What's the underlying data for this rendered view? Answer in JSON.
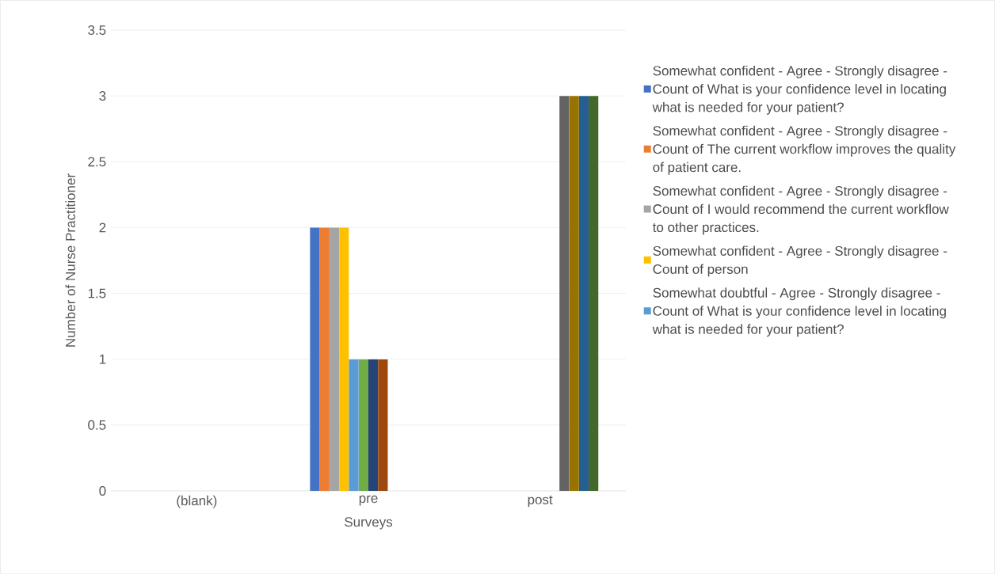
{
  "chart_data": {
    "type": "bar",
    "xlabel": "Surveys",
    "ylabel": "Number of Nurse Practitioner",
    "categories": [
      "(blank)",
      "pre",
      "post"
    ],
    "series": [
      {
        "name": "Somewhat confident - Agree - Strongly disagree - Count of What is your confidence level in locating what is needed for your patient?",
        "color": "#4472c4",
        "values": [
          null,
          2,
          null
        ]
      },
      {
        "name": "Somewhat confident - Agree - Strongly disagree - Count of The current workflow improves the quality of patient care.",
        "color": "#ed7d31",
        "values": [
          null,
          2,
          null
        ]
      },
      {
        "name": "Somewhat confident - Agree - Strongly disagree - Count of I would recommend the current workflow to other practices.",
        "color": "#a5a5a5",
        "values": [
          null,
          2,
          null
        ]
      },
      {
        "name": "Somewhat confident - Agree - Strongly disagree - Count of person",
        "color": "#ffc000",
        "values": [
          null,
          2,
          null
        ]
      },
      {
        "name": "Somewhat doubtful - Agree - Strongly disagree - Count of What is your confidence level in locating what is needed for your patient?",
        "color": "#5b9bd5",
        "values": [
          null,
          1,
          null
        ]
      },
      {
        "color": "#70ad47",
        "values": [
          null,
          1,
          null
        ]
      },
      {
        "color": "#264478",
        "values": [
          null,
          1,
          null
        ]
      },
      {
        "color": "#9e480e",
        "values": [
          null,
          1,
          null
        ]
      },
      {
        "color": "#636363",
        "values": [
          null,
          null,
          3
        ]
      },
      {
        "color": "#997300",
        "values": [
          null,
          null,
          3
        ]
      },
      {
        "color": "#255e91",
        "values": [
          null,
          null,
          3
        ]
      },
      {
        "color": "#43682b",
        "values": [
          null,
          null,
          3
        ]
      }
    ],
    "ylim": [
      0,
      3.5
    ],
    "yticks": [
      0,
      0.5,
      1,
      1.5,
      2,
      2.5,
      3,
      3.5
    ],
    "grid": "y",
    "legend": "right"
  }
}
